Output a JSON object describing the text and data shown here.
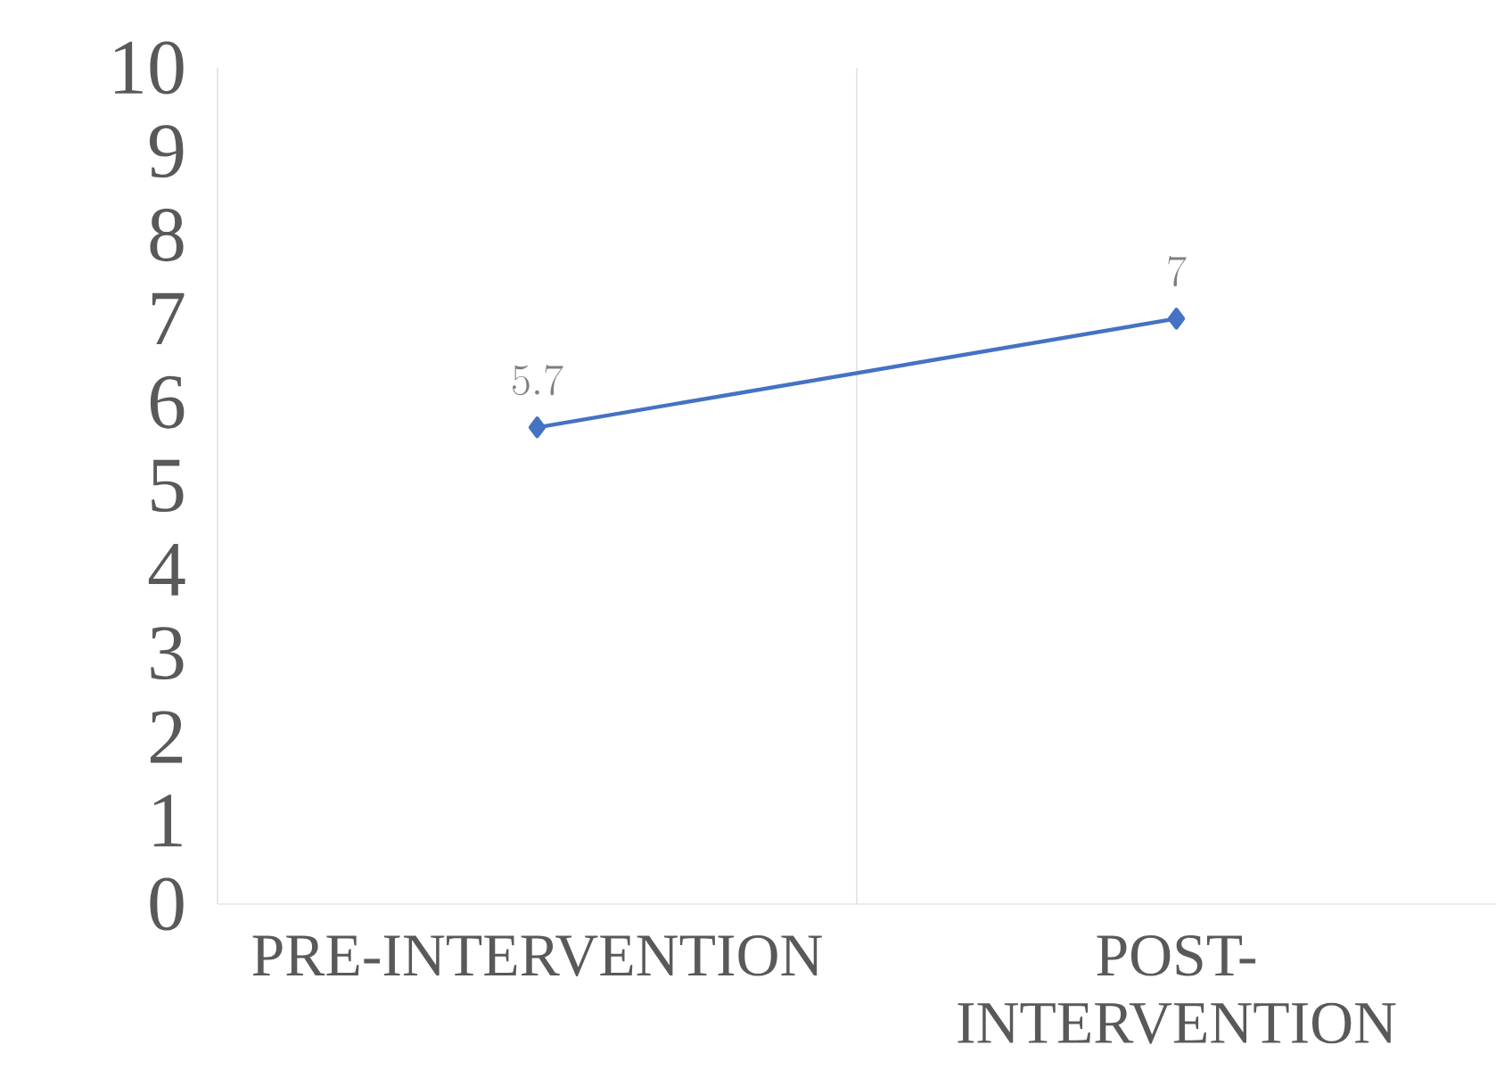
{
  "chart_data": {
    "type": "line",
    "categories": [
      "PRE-INTERVENTION",
      "POST-INTERVENTION"
    ],
    "series": [
      {
        "color": "#4472c4",
        "values": [
          5.7,
          7
        ]
      }
    ],
    "ylim": [
      0,
      10
    ],
    "yticks": [
      0,
      1,
      2,
      3,
      4,
      5,
      6,
      7,
      8,
      9,
      10
    ],
    "grid": "x",
    "marker": "diamond",
    "line_style": "solid",
    "data_labels": true
  }
}
